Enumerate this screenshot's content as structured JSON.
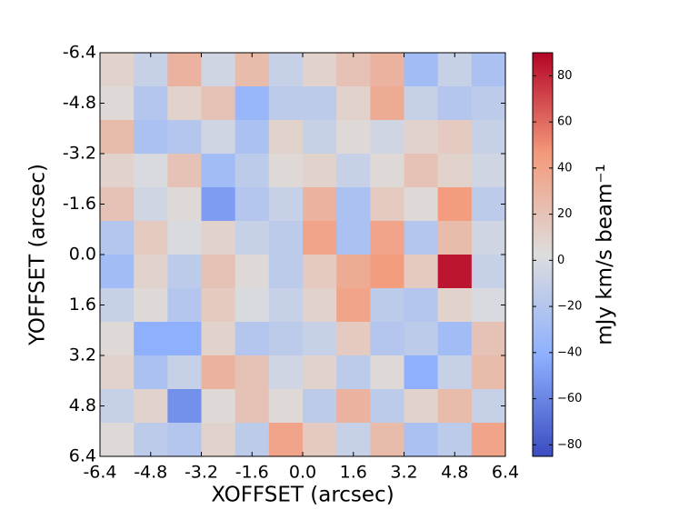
{
  "chart_data": {
    "type": "heatmap",
    "xlabel": "XOFFSET (arcsec)",
    "ylabel": "YOFFSET (arcsec)",
    "colorbar_label": "mJy km/s beam⁻¹",
    "xlim": [
      -6.4,
      6.4
    ],
    "ylim": [
      -6.4,
      6.4
    ],
    "y_inverted": true,
    "xticks": [
      -6.4,
      -4.8,
      -3.2,
      -1.6,
      {
        "value": 0,
        "label": "0.0"
      },
      1.6,
      3.2,
      4.8,
      6.4
    ],
    "yticks": [
      -6.4,
      -4.8,
      -3.2,
      -1.6,
      {
        "value": 0,
        "label": "0.0"
      },
      1.6,
      3.2,
      4.8,
      6.4
    ],
    "clim": [
      -85,
      90
    ],
    "cticks": [
      {
        "value": -80,
        "label": "−80"
      },
      {
        "value": -60,
        "label": "−60"
      },
      {
        "value": -40,
        "label": "−40"
      },
      {
        "value": -20,
        "label": "−20"
      },
      0,
      20,
      40,
      60,
      80
    ],
    "colormap": "coolwarm",
    "z": [
      [
        10,
        -10,
        30,
        -5,
        25,
        -10,
        10,
        20,
        30,
        -30,
        -10,
        -25
      ],
      [
        5,
        -20,
        10,
        20,
        -35,
        -15,
        -15,
        10,
        35,
        -10,
        -20,
        -15
      ],
      [
        25,
        -25,
        -20,
        -5,
        -25,
        10,
        -10,
        5,
        -5,
        10,
        15,
        -10
      ],
      [
        10,
        0,
        20,
        -30,
        -15,
        5,
        10,
        -10,
        5,
        20,
        10,
        -5
      ],
      [
        20,
        -5,
        5,
        -50,
        -20,
        -10,
        30,
        -25,
        15,
        5,
        45,
        -15
      ],
      [
        -20,
        15,
        0,
        10,
        -10,
        -15,
        40,
        -25,
        40,
        -20,
        25,
        -5
      ],
      [
        -30,
        10,
        -15,
        20,
        5,
        -15,
        15,
        35,
        45,
        15,
        85,
        -10
      ],
      [
        -10,
        5,
        -20,
        15,
        0,
        -10,
        10,
        40,
        -15,
        -20,
        10,
        0
      ],
      [
        5,
        -40,
        -40,
        10,
        -20,
        -15,
        -10,
        15,
        -20,
        -15,
        -30,
        20
      ],
      [
        10,
        -25,
        -10,
        30,
        20,
        -5,
        10,
        -15,
        5,
        -40,
        -10,
        25
      ],
      [
        -10,
        10,
        -55,
        5,
        20,
        5,
        -15,
        30,
        -15,
        10,
        25,
        -10
      ],
      [
        5,
        -15,
        -20,
        10,
        -15,
        40,
        15,
        -10,
        25,
        -25,
        -15,
        40
      ]
    ]
  }
}
